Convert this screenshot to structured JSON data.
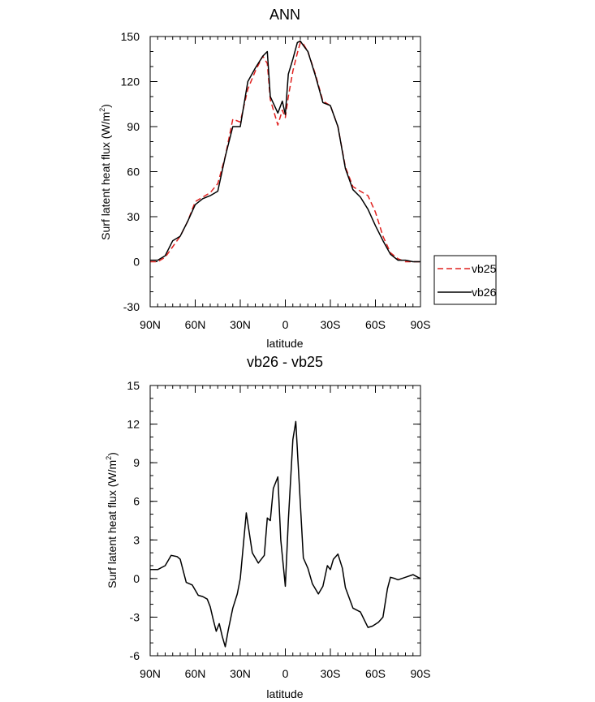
{
  "chart_data": [
    {
      "type": "line",
      "title": "ANN",
      "xlabel": "latitude",
      "ylabel": "Surf latent heat flux (W/m",
      "ylabel_sup": "2",
      "ylabel_close": ")",
      "xlim": [
        90,
        -90
      ],
      "ylim": [
        -30,
        150
      ],
      "xticks": [
        90,
        60,
        30,
        0,
        -30,
        -60,
        -90
      ],
      "xtick_labels": [
        "90N",
        "60N",
        "30N",
        "0",
        "30S",
        "60S",
        "90S"
      ],
      "yticks": [
        -30,
        0,
        30,
        60,
        90,
        120,
        150
      ],
      "ytick_labels": [
        "-30",
        "0",
        "30",
        "60",
        "90",
        "120",
        "150"
      ],
      "legend": {
        "placement": "right",
        "entries": [
          "vb25",
          "vb26"
        ]
      },
      "series": [
        {
          "name": "vb25",
          "color": "#e0201e",
          "dash": "dashed",
          "x": [
            90,
            85,
            80,
            75,
            70,
            65,
            60,
            55,
            50,
            45,
            40,
            35,
            30,
            25,
            20,
            15,
            12,
            10,
            5,
            2,
            0,
            -2,
            -5,
            -8,
            -10,
            -12,
            -15,
            -20,
            -25,
            -30,
            -35,
            -40,
            -45,
            -50,
            -55,
            -60,
            -65,
            -70,
            -75,
            -80,
            -85,
            -90
          ],
          "y": [
            0,
            0,
            3,
            10,
            17,
            27,
            40,
            43,
            46,
            52,
            70,
            95,
            93,
            115,
            127,
            137,
            132,
            108,
            91,
            101,
            96,
            110,
            127,
            139,
            146,
            145,
            140,
            125,
            107,
            104,
            90,
            63,
            50,
            47,
            44,
            33,
            17,
            6,
            2,
            0,
            0,
            0
          ]
        },
        {
          "name": "vb26",
          "color": "#000000",
          "dash": "solid",
          "x": [
            90,
            85,
            80,
            75,
            70,
            65,
            60,
            55,
            50,
            45,
            40,
            35,
            30,
            25,
            20,
            15,
            12,
            10,
            5,
            2,
            0,
            -2,
            -5,
            -8,
            -10,
            -12,
            -15,
            -20,
            -25,
            -30,
            -35,
            -40,
            -45,
            -50,
            -55,
            -60,
            -65,
            -70,
            -75,
            -80,
            -85,
            -90
          ],
          "y": [
            1,
            1,
            4,
            14,
            17,
            27,
            38,
            42,
            44,
            47,
            70,
            90,
            90,
            120,
            129,
            137,
            140,
            110,
            99,
            107,
            98,
            125,
            135,
            146,
            147,
            144,
            140,
            124,
            106,
            104,
            90,
            62,
            48,
            43,
            35,
            24,
            14,
            5,
            1,
            1,
            0,
            0
          ]
        }
      ]
    },
    {
      "type": "line",
      "title": "vb26 - vb25",
      "xlabel": "latitude",
      "ylabel": "Surf latent heat flux (W/m",
      "ylabel_sup": "2",
      "ylabel_close": ")",
      "xlim": [
        90,
        -90
      ],
      "ylim": [
        -6,
        15
      ],
      "xticks": [
        90,
        60,
        30,
        0,
        -30,
        -60,
        -90
      ],
      "xtick_labels": [
        "90N",
        "60N",
        "30N",
        "0",
        "30S",
        "60S",
        "90S"
      ],
      "yticks": [
        -6,
        -3,
        0,
        3,
        6,
        9,
        12,
        15
      ],
      "ytick_labels": [
        "-6",
        "-3",
        "0",
        "3",
        "6",
        "9",
        "12",
        "15"
      ],
      "series": [
        {
          "name": "vb26 - vb25",
          "color": "#000000",
          "dash": "solid",
          "x": [
            90,
            85,
            80,
            76,
            72,
            70,
            66,
            62,
            58,
            55,
            52,
            50,
            48,
            46,
            44,
            42,
            40,
            38,
            35,
            32,
            30,
            26,
            22,
            18,
            14,
            12,
            10,
            8,
            5,
            3,
            0,
            -2,
            -5,
            -7,
            -9,
            -12,
            -15,
            -18,
            -22,
            -25,
            -28,
            -30,
            -32,
            -35,
            -38,
            -40,
            -45,
            -50,
            -55,
            -58,
            -62,
            -65,
            -68,
            -70,
            -73,
            -75,
            -80,
            -85,
            -90
          ],
          "y": [
            0.7,
            0.7,
            1.0,
            1.8,
            1.7,
            1.5,
            -0.3,
            -0.5,
            -1.3,
            -1.4,
            -1.6,
            -2.2,
            -3.2,
            -4.1,
            -3.5,
            -4.5,
            -5.3,
            -4.0,
            -2.3,
            -1.2,
            0.0,
            5.1,
            2.0,
            1.2,
            1.8,
            4.7,
            4.5,
            7.0,
            7.9,
            3.0,
            -0.6,
            4.5,
            10.8,
            12.2,
            8.0,
            1.6,
            0.8,
            -0.4,
            -1.2,
            -0.6,
            1.0,
            0.7,
            1.5,
            1.9,
            0.8,
            -0.7,
            -2.3,
            -2.6,
            -3.8,
            -3.7,
            -3.4,
            -3.0,
            -0.8,
            0.1,
            0.0,
            -0.1,
            0.1,
            0.3,
            0.0
          ]
        }
      ]
    }
  ]
}
